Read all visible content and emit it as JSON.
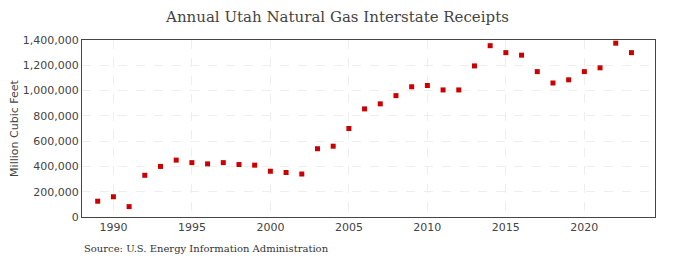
{
  "chart_data": {
    "type": "scatter",
    "title": "Annual Utah Natural Gas Interstate Receipts",
    "ylabel": "Million Cubic Feet",
    "annotation": "Source: U.S. Energy Information Administration",
    "x": [
      1989,
      1990,
      1991,
      1992,
      1993,
      1994,
      1995,
      1996,
      1997,
      1998,
      1999,
      2000,
      2001,
      2002,
      2003,
      2004,
      2005,
      2006,
      2007,
      2008,
      2009,
      2010,
      2011,
      2012,
      2013,
      2014,
      2015,
      2016,
      2017,
      2018,
      2019,
      2020,
      2021,
      2022,
      2023
    ],
    "values": [
      125000,
      160000,
      82000,
      330000,
      400000,
      450000,
      430000,
      420000,
      430000,
      415000,
      410000,
      362000,
      352000,
      340000,
      540000,
      560000,
      700000,
      855000,
      895000,
      960000,
      1030000,
      1040000,
      1005000,
      1005000,
      1195000,
      1355000,
      1300000,
      1280000,
      1150000,
      1060000,
      1085000,
      1150000,
      1180000,
      1375000,
      1300000
    ],
    "color": "#cc0000",
    "marker": "square",
    "xlim": [
      1988.0,
      2024.5
    ],
    "xticks": [
      1990,
      1995,
      2000,
      2005,
      2010,
      2015,
      2020
    ],
    "ylim": [
      0,
      1400000
    ],
    "yticks": [
      0,
      {
        "value": 200000,
        "label": "200,000"
      },
      {
        "value": 400000,
        "label": "400,000"
      },
      {
        "value": 600000,
        "label": "600,000"
      },
      {
        "value": 800000,
        "label": "800,000"
      },
      {
        "value": 1000000,
        "label": "1,000,000"
      },
      {
        "value": 1200000,
        "label": "1,200,000"
      },
      {
        "value": 1400000,
        "label": "1,400,000"
      }
    ],
    "grid": true
  }
}
